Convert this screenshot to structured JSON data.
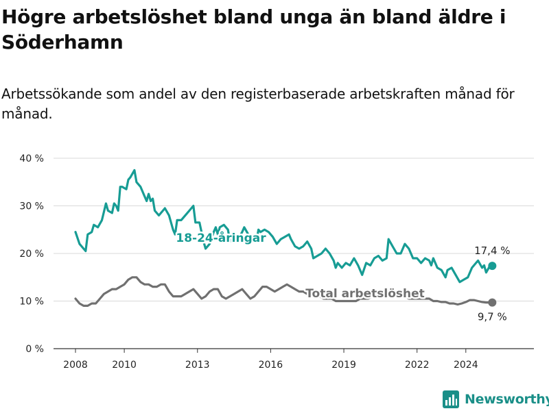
{
  "title": "Högre arbetslöshet bland unga än bland äldre i Söderhamn",
  "subtitle": "Arbetssökande som andel av den registerbaserade arbetskraften månad för månad.",
  "brand": {
    "name": "Newsworthy"
  },
  "colors": {
    "youth": "#179c94",
    "total": "#707070",
    "grid": "#d9d9d9",
    "axis": "#333333",
    "brand": "#1a8f88"
  },
  "chart_data": {
    "type": "line",
    "title": "Högre arbetslöshet bland unga än bland äldre i Söderhamn",
    "subtitle": "Arbetssökande som andel av den registerbaserade arbetskraften månad för månad.",
    "x_ticks": [
      "2008",
      "2010",
      "2013",
      "2016",
      "2019",
      "2022",
      "2024"
    ],
    "y_ticks": [
      "0 %",
      "10 %",
      "20 %",
      "30 %",
      "40 %"
    ],
    "ylim": [
      0,
      40
    ],
    "xlim": [
      "2008-01",
      "2025-06"
    ],
    "grid": "horizontal",
    "series": [
      {
        "name": "18-24-åringar",
        "end_label": "17,4 %",
        "data": [
          [
            "2008-01",
            24.5
          ],
          [
            "2008-03",
            22
          ],
          [
            "2008-05",
            21
          ],
          [
            "2008-06",
            20.5
          ],
          [
            "2008-07",
            24
          ],
          [
            "2008-09",
            24.5
          ],
          [
            "2008-10",
            26
          ],
          [
            "2008-12",
            25.5
          ],
          [
            "2009-02",
            27
          ],
          [
            "2009-04",
            30.5
          ],
          [
            "2009-05",
            29
          ],
          [
            "2009-07",
            28.5
          ],
          [
            "2009-08",
            30.5
          ],
          [
            "2009-09",
            30
          ],
          [
            "2009-10",
            29
          ],
          [
            "2009-11",
            34
          ],
          [
            "2009-12",
            34
          ],
          [
            "2010-02",
            33.5
          ],
          [
            "2010-03",
            35.5
          ],
          [
            "2010-04",
            36
          ],
          [
            "2010-06",
            37.5
          ],
          [
            "2010-07",
            35
          ],
          [
            "2010-09",
            34
          ],
          [
            "2010-11",
            32
          ],
          [
            "2010-12",
            31
          ],
          [
            "2011-01",
            32.5
          ],
          [
            "2011-02",
            31
          ],
          [
            "2011-03",
            31.5
          ],
          [
            "2011-04",
            29
          ],
          [
            "2011-06",
            28
          ],
          [
            "2011-08",
            29
          ],
          [
            "2011-09",
            29.5
          ],
          [
            "2011-11",
            28
          ],
          [
            "2012-01",
            25
          ],
          [
            "2012-02",
            24
          ],
          [
            "2012-03",
            27
          ],
          [
            "2012-05",
            27
          ],
          [
            "2012-07",
            28
          ],
          [
            "2012-09",
            29
          ],
          [
            "2012-11",
            30
          ],
          [
            "2012-12",
            26.5
          ],
          [
            "2013-02",
            26.5
          ],
          [
            "2013-04",
            22.5
          ],
          [
            "2013-05",
            21
          ],
          [
            "2013-07",
            22
          ],
          [
            "2013-09",
            24.5
          ],
          [
            "2013-10",
            25.5
          ],
          [
            "2013-11",
            24
          ],
          [
            "2013-12",
            25.5
          ],
          [
            "2014-02",
            26
          ],
          [
            "2014-04",
            25
          ],
          [
            "2014-05",
            22.5
          ],
          [
            "2014-07",
            23.5
          ],
          [
            "2014-09",
            23
          ],
          [
            "2014-11",
            24.5
          ],
          [
            "2014-12",
            25.5
          ],
          [
            "2015-02",
            24
          ],
          [
            "2015-04",
            23
          ],
          [
            "2015-06",
            22.5
          ],
          [
            "2015-07",
            25
          ],
          [
            "2015-08",
            24.5
          ],
          [
            "2015-10",
            25
          ],
          [
            "2015-12",
            24.5
          ],
          [
            "2016-02",
            23.5
          ],
          [
            "2016-04",
            22
          ],
          [
            "2016-06",
            23
          ],
          [
            "2016-08",
            23.5
          ],
          [
            "2016-10",
            24
          ],
          [
            "2016-11",
            23
          ],
          [
            "2017-01",
            21.5
          ],
          [
            "2017-03",
            21
          ],
          [
            "2017-05",
            21.5
          ],
          [
            "2017-07",
            22.5
          ],
          [
            "2017-09",
            21
          ],
          [
            "2017-10",
            19
          ],
          [
            "2017-12",
            19.5
          ],
          [
            "2018-02",
            20
          ],
          [
            "2018-04",
            21
          ],
          [
            "2018-06",
            20
          ],
          [
            "2018-08",
            18.5
          ],
          [
            "2018-09",
            17
          ],
          [
            "2018-10",
            18
          ],
          [
            "2018-12",
            17
          ],
          [
            "2019-02",
            18
          ],
          [
            "2019-04",
            17.5
          ],
          [
            "2019-06",
            19
          ],
          [
            "2019-08",
            17.5
          ],
          [
            "2019-10",
            15.5
          ],
          [
            "2019-12",
            18
          ],
          [
            "2020-02",
            17.5
          ],
          [
            "2020-04",
            19
          ],
          [
            "2020-06",
            19.5
          ],
          [
            "2020-08",
            18.5
          ],
          [
            "2020-10",
            19
          ],
          [
            "2020-11",
            23
          ],
          [
            "2021-01",
            21.5
          ],
          [
            "2021-03",
            20
          ],
          [
            "2021-05",
            20
          ],
          [
            "2021-07",
            22
          ],
          [
            "2021-09",
            21
          ],
          [
            "2021-11",
            19
          ],
          [
            "2022-01",
            19
          ],
          [
            "2022-03",
            18
          ],
          [
            "2022-05",
            19
          ],
          [
            "2022-07",
            18.5
          ],
          [
            "2022-08",
            17.5
          ],
          [
            "2022-09",
            19
          ],
          [
            "2022-11",
            17
          ],
          [
            "2023-01",
            16.5
          ],
          [
            "2023-03",
            15
          ],
          [
            "2023-04",
            16.5
          ],
          [
            "2023-06",
            17
          ],
          [
            "2023-08",
            15.5
          ],
          [
            "2023-10",
            14
          ],
          [
            "2023-12",
            14.5
          ],
          [
            "2024-02",
            15
          ],
          [
            "2024-04",
            17
          ],
          [
            "2024-06",
            18
          ],
          [
            "2024-07",
            18.5
          ],
          [
            "2024-09",
            17
          ],
          [
            "2024-10",
            17.5
          ],
          [
            "2024-11",
            16
          ],
          [
            "2025-01",
            17.5
          ],
          [
            "2025-02",
            17.4
          ]
        ]
      },
      {
        "name": "Total arbetslöshet",
        "end_label": "9,7 %",
        "data": [
          [
            "2008-01",
            10.5
          ],
          [
            "2008-03",
            9.5
          ],
          [
            "2008-05",
            9
          ],
          [
            "2008-07",
            9
          ],
          [
            "2008-09",
            9.5
          ],
          [
            "2008-11",
            9.5
          ],
          [
            "2009-01",
            10.5
          ],
          [
            "2009-03",
            11.5
          ],
          [
            "2009-05",
            12
          ],
          [
            "2009-07",
            12.5
          ],
          [
            "2009-09",
            12.5
          ],
          [
            "2009-11",
            13
          ],
          [
            "2010-01",
            13.5
          ],
          [
            "2010-03",
            14.5
          ],
          [
            "2010-05",
            15
          ],
          [
            "2010-07",
            15
          ],
          [
            "2010-09",
            14
          ],
          [
            "2010-11",
            13.5
          ],
          [
            "2011-01",
            13.5
          ],
          [
            "2011-03",
            13
          ],
          [
            "2011-05",
            13
          ],
          [
            "2011-07",
            13.5
          ],
          [
            "2011-09",
            13.5
          ],
          [
            "2011-11",
            12
          ],
          [
            "2012-01",
            11
          ],
          [
            "2012-03",
            11
          ],
          [
            "2012-05",
            11
          ],
          [
            "2012-07",
            11.5
          ],
          [
            "2012-09",
            12
          ],
          [
            "2012-11",
            12.5
          ],
          [
            "2013-01",
            11.5
          ],
          [
            "2013-03",
            10.5
          ],
          [
            "2013-05",
            11
          ],
          [
            "2013-07",
            12
          ],
          [
            "2013-09",
            12.5
          ],
          [
            "2013-11",
            12.5
          ],
          [
            "2014-01",
            11
          ],
          [
            "2014-03",
            10.5
          ],
          [
            "2014-05",
            11
          ],
          [
            "2014-07",
            11.5
          ],
          [
            "2014-09",
            12
          ],
          [
            "2014-11",
            12.5
          ],
          [
            "2015-01",
            11.5
          ],
          [
            "2015-03",
            10.5
          ],
          [
            "2015-05",
            11
          ],
          [
            "2015-07",
            12
          ],
          [
            "2015-09",
            13
          ],
          [
            "2015-11",
            13
          ],
          [
            "2016-01",
            12.5
          ],
          [
            "2016-03",
            12
          ],
          [
            "2016-05",
            12.5
          ],
          [
            "2016-07",
            13
          ],
          [
            "2016-09",
            13.5
          ],
          [
            "2016-11",
            13
          ],
          [
            "2017-01",
            12.5
          ],
          [
            "2017-03",
            12
          ],
          [
            "2017-05",
            12
          ],
          [
            "2017-07",
            11.5
          ],
          [
            "2017-09",
            11
          ],
          [
            "2017-11",
            11
          ],
          [
            "2018-01",
            11
          ],
          [
            "2018-03",
            10.5
          ],
          [
            "2018-05",
            10.5
          ],
          [
            "2018-07",
            10.5
          ],
          [
            "2018-09",
            10
          ],
          [
            "2018-11",
            10
          ],
          [
            "2019-01",
            10
          ],
          [
            "2019-03",
            10
          ],
          [
            "2019-05",
            10
          ],
          [
            "2019-07",
            10
          ],
          [
            "2019-09",
            10.5
          ],
          [
            "2019-11",
            10.5
          ],
          [
            "2020-01",
            10.5
          ],
          [
            "2020-03",
            11
          ],
          [
            "2020-05",
            11.5
          ],
          [
            "2020-07",
            11.5
          ],
          [
            "2020-09",
            11
          ],
          [
            "2020-11",
            11.5
          ],
          [
            "2021-01",
            11.5
          ],
          [
            "2021-03",
            11
          ],
          [
            "2021-05",
            11
          ],
          [
            "2021-07",
            11
          ],
          [
            "2021-09",
            10.5
          ],
          [
            "2021-11",
            10.5
          ],
          [
            "2022-01",
            10.5
          ],
          [
            "2022-03",
            10.5
          ],
          [
            "2022-05",
            10.5
          ],
          [
            "2022-07",
            10.5
          ],
          [
            "2022-09",
            10
          ],
          [
            "2022-11",
            10
          ],
          [
            "2023-01",
            9.8
          ],
          [
            "2023-03",
            9.8
          ],
          [
            "2023-05",
            9.5
          ],
          [
            "2023-07",
            9.5
          ],
          [
            "2023-09",
            9.3
          ],
          [
            "2023-11",
            9.5
          ],
          [
            "2024-01",
            9.8
          ],
          [
            "2024-03",
            10.2
          ],
          [
            "2024-05",
            10.2
          ],
          [
            "2024-07",
            10
          ],
          [
            "2024-09",
            9.8
          ],
          [
            "2024-11",
            9.7
          ],
          [
            "2025-01",
            9.7
          ],
          [
            "2025-02",
            9.7
          ]
        ]
      }
    ]
  }
}
